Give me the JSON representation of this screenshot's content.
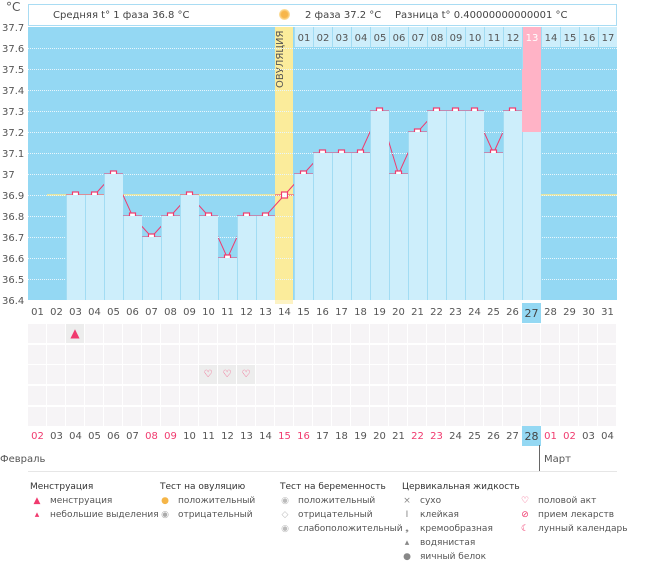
{
  "header": {
    "unit": "°C",
    "phase1": "Средняя t° 1 фаза 36.8 °C",
    "phase2": "2 фаза 37.2 °C",
    "difference": "Разница t° 0.40000000000001 °C",
    "ovulation_label": "ОВУЛЯЦИЯ",
    "ovulation_icon": "sun-icon"
  },
  "colors": {
    "plot_bg": "#94d8f3",
    "bar": "#cdeefb",
    "line": "#f03a6e",
    "coverline": "#fbe88a",
    "ovulation": "#fbec9b",
    "highlight": "#ffb3c6",
    "weekend": "#f03a6e"
  },
  "chart_data": {
    "type": "line",
    "ylabel": "°C",
    "ylim": [
      36.4,
      37.7
    ],
    "yticks": [
      "37.7",
      "37.6",
      "37.5",
      "37.4",
      "37.3",
      "37.2",
      "37.1",
      "37",
      "36.9",
      "36.8",
      "36.7",
      "36.6",
      "36.5",
      "36.4"
    ],
    "x": [
      "01",
      "02",
      "03",
      "04",
      "05",
      "06",
      "07",
      "08",
      "09",
      "10",
      "11",
      "12",
      "13",
      "14",
      "15",
      "16",
      "17",
      "18",
      "19",
      "20",
      "21",
      "22",
      "23",
      "24",
      "25",
      "26",
      "27",
      "28",
      "29",
      "30",
      "31"
    ],
    "values": [
      null,
      null,
      36.9,
      36.9,
      37.0,
      36.8,
      36.7,
      36.8,
      36.9,
      36.8,
      36.6,
      36.8,
      36.8,
      36.9,
      37.0,
      37.1,
      37.1,
      37.1,
      37.3,
      37.0,
      37.2,
      37.3,
      37.3,
      37.3,
      37.1,
      37.3,
      37.2,
      null,
      null,
      null,
      null
    ],
    "coverline": 36.9,
    "ovulation_day": "14",
    "current_day": "27",
    "phase2_days": [
      "01",
      "02",
      "03",
      "04",
      "05",
      "06",
      "07",
      "08",
      "09",
      "10",
      "11",
      "12",
      "13",
      "14",
      "15",
      "16",
      "17"
    ],
    "phase2_highlight": "13",
    "grid": true
  },
  "calendar": {
    "dates": [
      "02",
      "03",
      "04",
      "05",
      "06",
      "07",
      "08",
      "09",
      "10",
      "11",
      "12",
      "13",
      "14",
      "15",
      "16",
      "17",
      "18",
      "19",
      "20",
      "21",
      "22",
      "23",
      "24",
      "25",
      "26",
      "27",
      "28",
      "01",
      "02",
      "03",
      "04"
    ],
    "weekend_index": [
      0,
      6,
      7,
      13,
      14,
      20,
      21,
      27,
      28
    ],
    "selected_index": 26,
    "months": [
      "Февраль",
      "Март"
    ],
    "marks": [
      {
        "day": 3,
        "row": 0,
        "icon": "menstruation-icon"
      },
      {
        "day": 10,
        "row": 2,
        "icon": "heart-icon"
      },
      {
        "day": 11,
        "row": 2,
        "icon": "heart-icon"
      },
      {
        "day": 12,
        "row": 2,
        "icon": "heart-icon"
      }
    ]
  },
  "legend": {
    "menstruation": {
      "title": "Менструация",
      "items": [
        "менструация",
        "небольшие выделения"
      ]
    },
    "ovulation_test": {
      "title": "Тест на овуляцию",
      "items": [
        "положительный",
        "отрицательный"
      ]
    },
    "pregnancy_test": {
      "title": "Тест на беременность",
      "items": [
        "положительный",
        "отрицательный",
        "слабоположительный"
      ]
    },
    "cervical": {
      "title": "Цервикальная жидкость",
      "items": [
        "сухо",
        "клейкая",
        "кремообразная",
        "водянистая",
        "яичный белок"
      ]
    },
    "other": {
      "items": [
        "половой акт",
        "прием лекарств",
        "лунный календарь"
      ]
    }
  }
}
